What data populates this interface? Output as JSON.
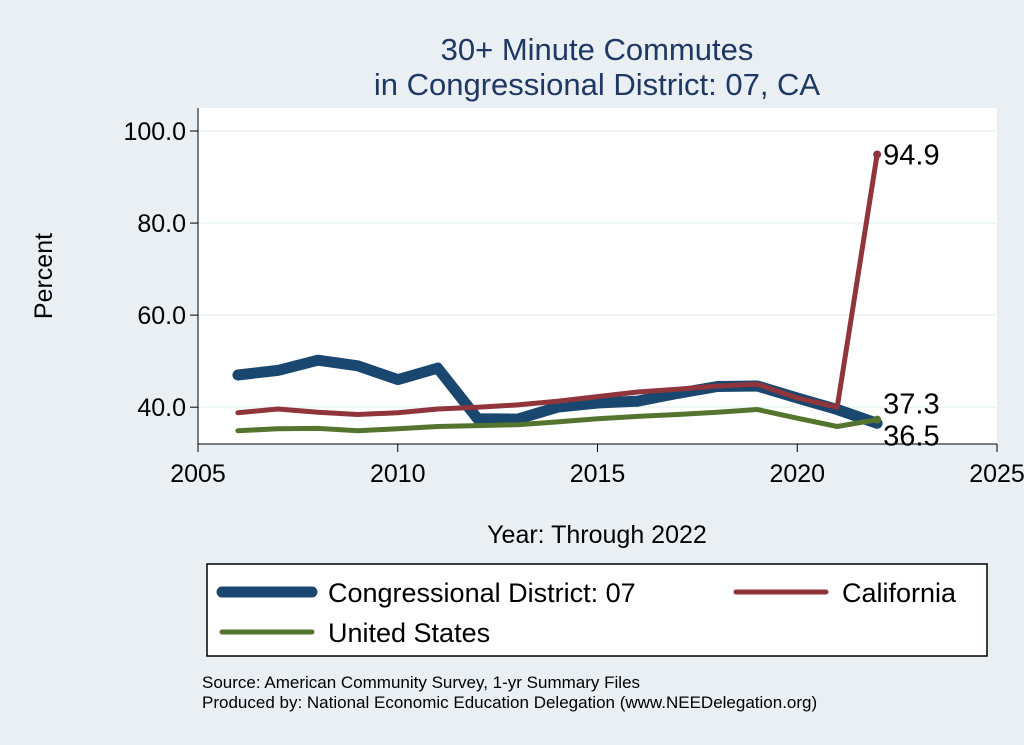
{
  "chart_data": {
    "type": "line",
    "title": [
      "30+ Minute Commutes",
      "in Congressional District:  07, CA"
    ],
    "xlabel": "Year: Through 2022",
    "ylabel": "Percent",
    "xlim": [
      2005,
      2025
    ],
    "ylim": [
      32,
      105
    ],
    "xticks": [
      2005,
      2010,
      2015,
      2020,
      2025
    ],
    "yticks": [
      40,
      60,
      80,
      100
    ],
    "ytick_labels": [
      "40.0",
      "60.0",
      "80.0",
      "100.0"
    ],
    "grid": true,
    "x": [
      2006,
      2007,
      2008,
      2009,
      2010,
      2011,
      2012,
      2013,
      2014,
      2015,
      2016,
      2017,
      2018,
      2019,
      2020,
      2021,
      2022
    ],
    "series": [
      {
        "name": "Congressional District:  07",
        "color": "#1a476f",
        "values": [
          47.0,
          48.0,
          50.2,
          49.0,
          46.0,
          48.5,
          37.5,
          37.4,
          40.0,
          40.9,
          41.3,
          43.0,
          44.5,
          44.6,
          42.0,
          39.5,
          36.5
        ],
        "end_label": "36.5"
      },
      {
        "name": "California",
        "color": "#90353b",
        "values": [
          38.8,
          39.6,
          38.9,
          38.4,
          38.8,
          39.6,
          40.0,
          40.5,
          41.3,
          42.3,
          43.3,
          43.9,
          44.6,
          45.0,
          42.0,
          40.0,
          94.9
        ],
        "end_label": "94.9"
      },
      {
        "name": "United States",
        "color": "#55752f",
        "values": [
          34.9,
          35.3,
          35.4,
          34.9,
          35.3,
          35.8,
          36.0,
          36.2,
          36.8,
          37.5,
          38.0,
          38.4,
          38.9,
          39.5,
          37.6,
          35.8,
          37.3
        ],
        "end_label": "37.3"
      }
    ],
    "legend_position": "bottom"
  },
  "footnotes": [
    "Source: American Community Survey, 1-yr Summary Files",
    "Produced by: National Economic Education Delegation (www.NEEDelegation.org)"
  ]
}
